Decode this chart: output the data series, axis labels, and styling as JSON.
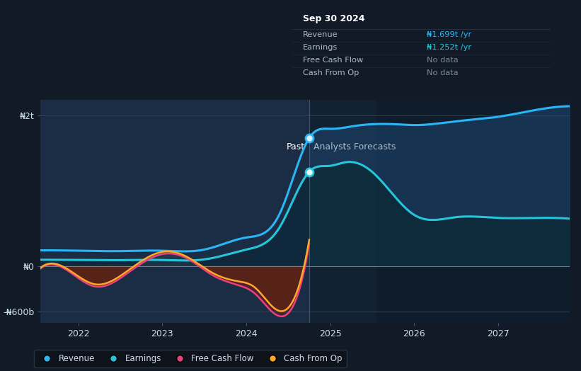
{
  "bg_color": "#131a27",
  "plot_bg_color": "#131a27",
  "tooltip_title": "Sep 30 2024",
  "tooltip_revenue_label": "Revenue",
  "tooltip_revenue_val": "₦1.699t /yr",
  "tooltip_earnings_label": "Earnings",
  "tooltip_earnings_val": "₦1.252t /yr",
  "tooltip_fcf_label": "Free Cash Flow",
  "tooltip_fcf_val": "No data",
  "tooltip_cfop_label": "Cash From Op",
  "tooltip_cfop_val": "No data",
  "past_label": "Past",
  "forecast_label": "Analysts Forecasts",
  "ylabel_n2t": "₦2t",
  "ylabel_n0": "₦0",
  "ylabel_n600b": "-₦600b",
  "xlabel_years": [
    "2022",
    "2023",
    "2024",
    "2025",
    "2026",
    "2027"
  ],
  "legend_items": [
    "Revenue",
    "Earnings",
    "Free Cash Flow",
    "Cash From Op"
  ],
  "legend_colors": [
    "#29b6f6",
    "#26c6da",
    "#ec407a",
    "#ffa726"
  ],
  "revenue_color": "#29b6f6",
  "earnings_color": "#26c6da",
  "fcf_color": "#ec407a",
  "cashop_color": "#ffa726",
  "divider_x": 2024.75,
  "x_min": 2021.55,
  "x_max": 2027.85,
  "y_min": -750,
  "y_max": 2200,
  "n2t": 2000,
  "n0": 0,
  "n600b": -600
}
